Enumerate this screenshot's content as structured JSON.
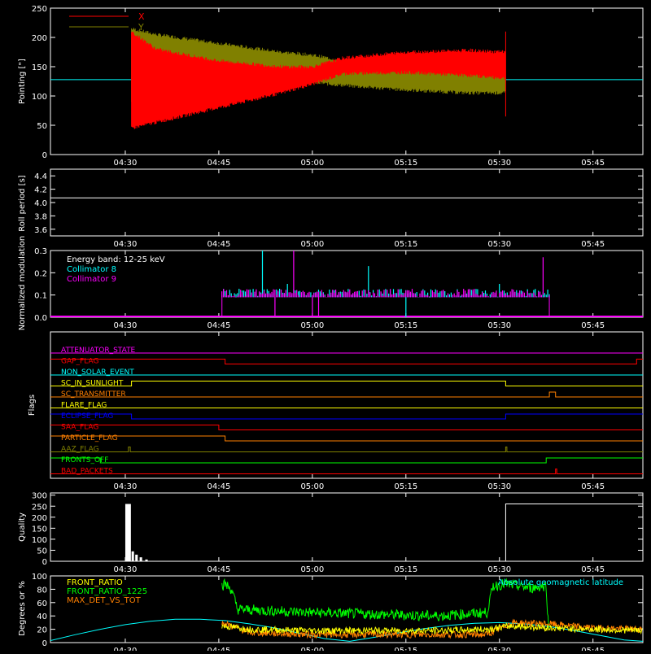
{
  "x_axis": {
    "tick_labels": [
      "04:30",
      "04:45",
      "05:00",
      "05:15",
      "05:30",
      "05:45"
    ],
    "tick_minutes": [
      270,
      285,
      300,
      315,
      330,
      345
    ],
    "range_minutes": [
      258,
      353
    ]
  },
  "chart_data": [
    {
      "type": "line",
      "id": "pointing",
      "ylabel": "Pointing [\"]",
      "ylim": [
        0,
        250
      ],
      "y_ticks": [
        0,
        50,
        100,
        150,
        200,
        250
      ],
      "legend": {
        "placement": "top-left",
        "entries": [
          {
            "name": "X",
            "color": "#ff0000"
          },
          {
            "name": "Y",
            "color": "#808000"
          }
        ]
      },
      "series": [
        {
          "name": "X",
          "color": "#ff0000",
          "x": [
            271,
            275,
            285,
            295,
            300,
            305,
            315,
            325,
            331
          ],
          "lower": [
            45,
            55,
            80,
            105,
            120,
            138,
            140,
            135,
            130
          ],
          "upper": [
            210,
            180,
            160,
            150,
            150,
            165,
            175,
            178,
            175
          ]
        },
        {
          "name": "Y",
          "color": "#808000",
          "x": [
            271,
            275,
            285,
            295,
            300,
            305,
            315,
            325,
            331
          ],
          "lower": [
            90,
            95,
            110,
            120,
            123,
            118,
            110,
            105,
            105
          ],
          "upper": [
            215,
            205,
            190,
            175,
            170,
            160,
            150,
            148,
            148
          ]
        }
      ],
      "baseline": {
        "y": 128,
        "color": "#00ffff"
      }
    },
    {
      "type": "line",
      "id": "roll",
      "ylabel": "Roll period [s]",
      "ylim": [
        3.5,
        4.5
      ],
      "y_ticks": [
        3.6,
        3.8,
        4.0,
        4.2,
        4.4
      ],
      "y_tick_labels": [
        "3.6",
        "3.8",
        "4.0",
        "4.2",
        "4.4"
      ],
      "series": [
        {
          "name": "",
          "color": "#ffffff",
          "x": [
            258,
            353
          ],
          "y": [
            4.07,
            4.07
          ]
        }
      ]
    },
    {
      "type": "line",
      "id": "modulation",
      "ylabel": "Normalized modulation",
      "ylim": [
        0,
        0.3
      ],
      "y_ticks": [
        0,
        0.1,
        0.2,
        0.3
      ],
      "y_tick_labels": [
        "0.0",
        "0.1",
        "0.2",
        "0.3"
      ],
      "legend": {
        "placement": "top-left",
        "entries": [
          {
            "name": "Energy band: 12-25 keV",
            "color": "#ffffff"
          },
          {
            "name": "Collimator 8",
            "color": "#00ffff"
          },
          {
            "name": "Collimator 9",
            "color": "#ff00ff"
          }
        ]
      },
      "series": [
        {
          "name": "Collimator 8",
          "color": "#00ffff",
          "x_start": 285.5,
          "x_end": 338,
          "base": 0.1,
          "spikes": [
            [
              292,
              0.3
            ],
            [
              296,
              0.15
            ],
            [
              309,
              0.23
            ],
            [
              315,
              0.0
            ],
            [
              330,
              0.15
            ]
          ]
        },
        {
          "name": "Collimator 9",
          "color": "#ff00ff",
          "x_start": 285.5,
          "x_end": 338,
          "base": 0.1,
          "spikes": [
            [
              294,
              0.0
            ],
            [
              297,
              0.3
            ],
            [
              300,
              0.0
            ],
            [
              301,
              0.0
            ],
            [
              337,
              0.27
            ]
          ]
        }
      ],
      "baseline": {
        "y": 0,
        "color": "#ff00ff"
      }
    },
    {
      "type": "line",
      "id": "flags",
      "ylabel": "Flags",
      "flags": [
        {
          "name": "ATTENUATOR_STATE",
          "color": "#ff00ff",
          "steps": [
            [
              258,
              0
            ]
          ]
        },
        {
          "name": "GAP_FLAG",
          "color": "#ff0000",
          "steps": [
            [
              258,
              1
            ],
            [
              286,
              0
            ],
            [
              352,
              1
            ]
          ]
        },
        {
          "name": "NON_SOLAR_EVENT",
          "color": "#00ffff",
          "steps": [
            [
              258,
              0
            ]
          ]
        },
        {
          "name": "SC_IN_SUNLIGHT",
          "color": "#ffff00",
          "steps": [
            [
              258,
              0
            ],
            [
              271,
              1
            ],
            [
              331,
              0
            ]
          ]
        },
        {
          "name": "SC_TRANSMITTER",
          "color": "#ff8000",
          "steps": [
            [
              258,
              0
            ],
            [
              338,
              1
            ],
            [
              339,
              0
            ]
          ]
        },
        {
          "name": "FLARE_FLAG",
          "color": "#ffff00",
          "steps": [
            [
              258,
              0
            ]
          ]
        },
        {
          "name": "ECLIPSE_FLAG",
          "color": "#0000ff",
          "steps": [
            [
              258,
              1
            ],
            [
              271,
              0
            ],
            [
              331,
              1
            ]
          ]
        },
        {
          "name": "SAA_FLAG",
          "color": "#ff0000",
          "steps": [
            [
              258,
              1
            ],
            [
              285,
              0
            ]
          ]
        },
        {
          "name": "PARTICLE_FLAG",
          "color": "#ff8000",
          "steps": [
            [
              258,
              1
            ],
            [
              286,
              0
            ]
          ]
        },
        {
          "name": "AAZ_FLAG",
          "color": "#808000",
          "steps": [
            [
              258,
              0
            ],
            [
              270.5,
              1
            ],
            [
              270.8,
              0
            ],
            [
              331,
              1
            ],
            [
              331.2,
              0
            ]
          ]
        },
        {
          "name": "FRONTS_OFF",
          "color": "#00ff00",
          "steps": [
            [
              258,
              1
            ],
            [
              266,
              0
            ],
            [
              337.5,
              1
            ]
          ]
        },
        {
          "name": "BAD_PACKETS",
          "color": "#ff0000",
          "steps": [
            [
              258,
              0
            ],
            [
              339,
              1
            ],
            [
              339.2,
              0
            ]
          ]
        }
      ]
    },
    {
      "type": "bar",
      "id": "quality",
      "ylabel": "Quality",
      "ylim": [
        0,
        310
      ],
      "y_ticks": [
        0,
        50,
        100,
        150,
        200,
        250,
        300
      ],
      "segments": [
        {
          "x": [
            270,
            270.9
          ],
          "y": 260
        },
        {
          "x": [
            271,
            271.4
          ],
          "y": 45
        },
        {
          "x": [
            271.6,
            272
          ],
          "y": 30
        },
        {
          "x": [
            272.3,
            272.7
          ],
          "y": 18
        },
        {
          "x": [
            273.2,
            273.6
          ],
          "y": 8
        },
        {
          "x": [
            331,
            353
          ],
          "y": 260
        }
      ]
    },
    {
      "type": "line",
      "id": "ratios",
      "ylabel": "Degrees or %",
      "ylim": [
        0,
        100
      ],
      "y_ticks": [
        0,
        20,
        40,
        60,
        80,
        100
      ],
      "legend": {
        "placement": "top-left",
        "entries": [
          {
            "name": "FRONT_RATIO",
            "color": "#ffff00"
          },
          {
            "name": "FRONT_RATIO_1225",
            "color": "#00ff00"
          },
          {
            "name": "MAX_DET_VS_TOT",
            "color": "#ff8000"
          }
        ]
      },
      "annotation": {
        "text": "Absolute geomagnetic latitude",
        "color": "#00ffff",
        "placement": "top-right"
      },
      "series": [
        {
          "name": "Absolute geomagnetic latitude",
          "color": "#00ffff",
          "x": [
            258,
            262,
            266,
            270,
            274,
            278,
            282,
            286,
            290,
            294,
            298,
            302,
            306,
            310,
            314,
            318,
            322,
            326,
            330,
            334,
            338,
            342,
            346,
            350,
            353
          ],
          "y": [
            3,
            12,
            20,
            27,
            32,
            35,
            35,
            33,
            28,
            22,
            14,
            6,
            2,
            8,
            15,
            21,
            26,
            29,
            30,
            28,
            24,
            18,
            11,
            4,
            2
          ]
        },
        {
          "name": "FRONT_RATIO_1225",
          "color": "#00ff00",
          "x": [
            285.5,
            286,
            287,
            288,
            300,
            312,
            320,
            328,
            329,
            331,
            335,
            337.5,
            338
          ],
          "y": [
            85,
            88,
            80,
            50,
            45,
            42,
            40,
            45,
            85,
            88,
            82,
            85,
            0
          ]
        },
        {
          "name": "MAX_DET_VS_TOT",
          "color": "#ff8000",
          "x": [
            285.5,
            290,
            300,
            310,
            320,
            328,
            332,
            338,
            345,
            353
          ],
          "y": [
            30,
            15,
            12,
            12,
            12,
            12,
            30,
            28,
            22,
            20
          ]
        },
        {
          "name": "FRONT_RATIO",
          "color": "#ffff00",
          "x": [
            285.5,
            290,
            300,
            310,
            320,
            328,
            332,
            338,
            345,
            353
          ],
          "y": [
            25,
            20,
            18,
            18,
            18,
            20,
            25,
            22,
            20,
            18
          ]
        }
      ]
    }
  ]
}
